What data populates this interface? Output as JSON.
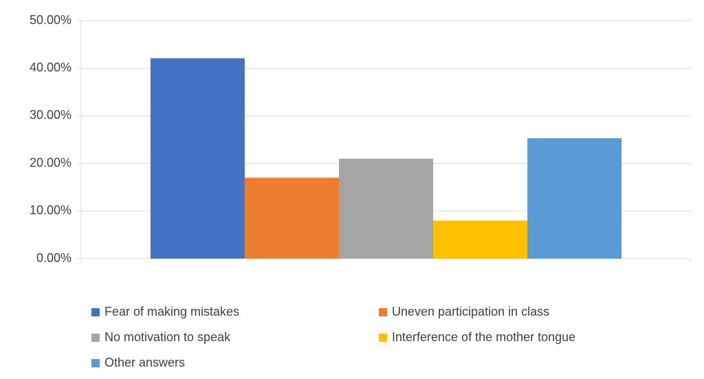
{
  "chart_data": {
    "type": "bar",
    "categories": [
      null
    ],
    "series": [
      {
        "name": "Fear of making mistakes",
        "color": "#4472c4",
        "values": [
          42.1
        ]
      },
      {
        "name": "Uneven participation in class",
        "color": "#ed7d31",
        "values": [
          17
        ]
      },
      {
        "name": "No motivation to speak",
        "color": "#a5a5a5",
        "values": [
          21
        ]
      },
      {
        "name": "Interference of the mother tongue",
        "color": "#ffc000",
        "values": [
          8
        ]
      },
      {
        "name": "Other answers",
        "color": "#5b9bd5",
        "values": [
          25.3
        ]
      }
    ],
    "ylim": [
      0,
      50
    ],
    "yticks": [
      {
        "value": 0,
        "label": "0.00%"
      },
      {
        "value": 10,
        "label": "10.00%"
      },
      {
        "value": 20,
        "label": "20.00%"
      },
      {
        "value": 30,
        "label": "30.00%"
      },
      {
        "value": 40,
        "label": "40.00%"
      },
      {
        "value": 50,
        "label": "50.00%"
      }
    ],
    "grid": true,
    "legend": "bottom"
  }
}
